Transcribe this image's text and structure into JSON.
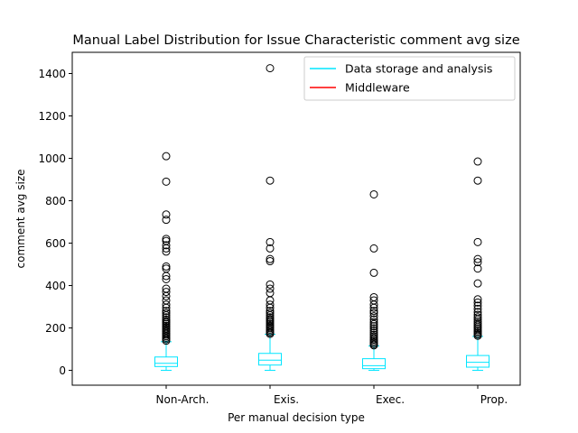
{
  "chart_data": {
    "type": "box",
    "title": "Manual Label Distribution for Issue Characteristic comment avg size",
    "xlabel": "Per manual decision type",
    "ylabel": "comment avg size",
    "categories": [
      "Non-Arch.",
      "Exis.",
      "Exec.",
      "Prop."
    ],
    "ylim": [
      -70,
      1500
    ],
    "yticks": [
      0,
      200,
      400,
      600,
      800,
      1000,
      1200,
      1400
    ],
    "ytick_labels": [
      "0",
      "200",
      "400",
      "600",
      "800",
      "1000",
      "1200",
      "1400"
    ],
    "grid": false,
    "legend_position": "top-right",
    "legend": [
      {
        "label": "Data storage and analysis",
        "color": "#00e5ff"
      },
      {
        "label": "Middleware",
        "color": "#ff0000"
      }
    ],
    "box_color": "#00e5ff",
    "outlier_color": "#000000",
    "boxes": [
      {
        "category": "Non-Arch.",
        "whisker_low": 0,
        "q1": 18,
        "median": 33,
        "q3": 63,
        "whisker_high": 135,
        "outliers": [
          1010,
          890,
          735,
          710,
          620,
          610,
          590,
          575,
          560,
          490,
          480,
          445,
          430,
          385,
          370,
          350,
          330,
          310,
          295,
          280,
          270,
          260,
          250,
          240,
          232,
          225,
          218,
          210,
          203,
          196,
          189,
          182,
          175,
          168,
          161,
          154,
          147,
          140
        ]
      },
      {
        "category": "Exis.",
        "whisker_low": 0,
        "q1": 25,
        "median": 48,
        "q3": 80,
        "whisker_high": 170,
        "outliers": [
          1425,
          895,
          605,
          575,
          525,
          515,
          405,
          385,
          365,
          330,
          310,
          295,
          280,
          270,
          260,
          250,
          242,
          235,
          228,
          220,
          213,
          206,
          199,
          192,
          185,
          178,
          172
        ]
      },
      {
        "category": "Exec.",
        "whisker_low": 0,
        "q1": 8,
        "median": 22,
        "q3": 55,
        "whisker_high": 115,
        "outliers": [
          830,
          575,
          460,
          345,
          330,
          310,
          295,
          280,
          270,
          255,
          240,
          228,
          218,
          208,
          198,
          188,
          178,
          168,
          160,
          152,
          145,
          138,
          131,
          124,
          118
        ]
      },
      {
        "category": "Prop.",
        "whisker_low": 0,
        "q1": 15,
        "median": 38,
        "q3": 70,
        "whisker_high": 160,
        "outliers": [
          985,
          895,
          605,
          525,
          510,
          480,
          410,
          335,
          320,
          305,
          290,
          275,
          262,
          250,
          240,
          230,
          222,
          214,
          206,
          198,
          190,
          183,
          176,
          169,
          163
        ]
      }
    ]
  }
}
